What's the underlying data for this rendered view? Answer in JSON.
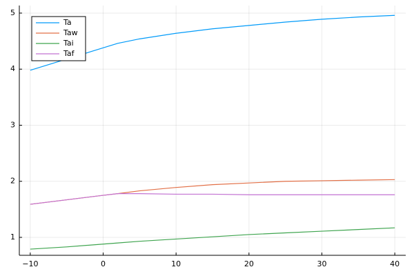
{
  "chart_data": {
    "type": "line",
    "x": [
      -10,
      -5,
      0,
      2,
      5,
      10,
      15,
      20,
      25,
      30,
      35,
      40
    ],
    "series": [
      {
        "name": "Ta",
        "color": "#009af9",
        "values": [
          3.98,
          4.18,
          4.38,
          4.46,
          4.54,
          4.64,
          4.72,
          4.78,
          4.84,
          4.89,
          4.93,
          4.96
        ]
      },
      {
        "name": "Taw",
        "color": "#e26f46",
        "values": [
          1.59,
          1.67,
          1.75,
          1.78,
          1.83,
          1.89,
          1.94,
          1.97,
          2.0,
          2.01,
          2.02,
          2.03
        ]
      },
      {
        "name": "Tai",
        "color": "#3ea44e",
        "values": [
          0.79,
          0.83,
          0.88,
          0.9,
          0.93,
          0.97,
          1.01,
          1.05,
          1.08,
          1.11,
          1.14,
          1.17
        ]
      },
      {
        "name": "Taf",
        "color": "#c271d2",
        "values": [
          1.59,
          1.67,
          1.75,
          1.78,
          1.78,
          1.77,
          1.77,
          1.76,
          1.76,
          1.76,
          1.76,
          1.76
        ]
      }
    ],
    "xlim": [
      -11.5,
      41.5
    ],
    "xticks": [
      {
        "value": -10,
        "label": "−10"
      },
      0,
      10,
      20,
      30,
      40
    ],
    "ylim": [
      0.68,
      5.135
    ],
    "yticks": [
      1,
      2,
      3,
      4,
      5
    ],
    "grid": true,
    "legend": "top-left"
  }
}
